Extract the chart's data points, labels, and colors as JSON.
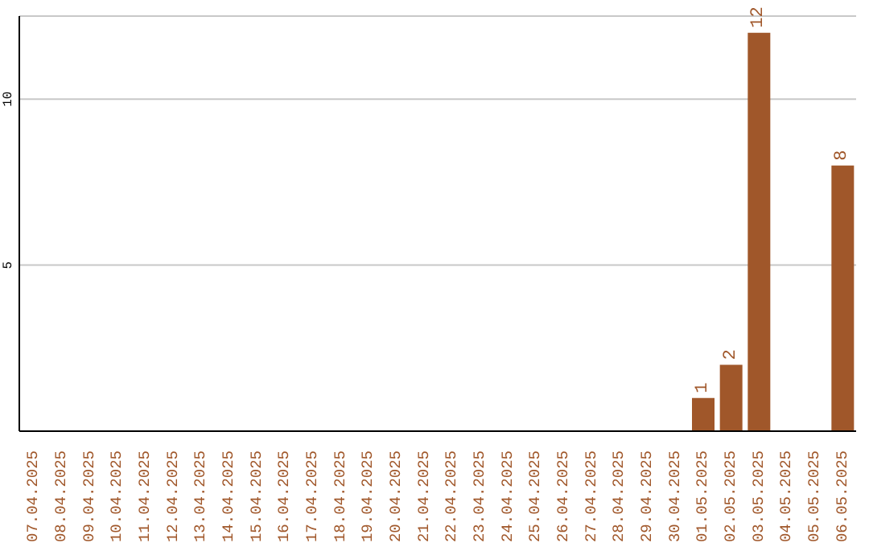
{
  "chart_data": {
    "type": "bar",
    "categories": [
      "07.04.2025",
      "08.04.2025",
      "09.04.2025",
      "10.04.2025",
      "11.04.2025",
      "12.04.2025",
      "13.04.2025",
      "14.04.2025",
      "15.04.2025",
      "16.04.2025",
      "17.04.2025",
      "18.04.2025",
      "19.04.2025",
      "20.04.2025",
      "21.04.2025",
      "22.04.2025",
      "23.04.2025",
      "24.04.2025",
      "25.04.2025",
      "26.04.2025",
      "27.04.2025",
      "28.04.2025",
      "29.04.2025",
      "30.04.2025",
      "01.05.2025",
      "02.05.2025",
      "03.05.2025",
      "04.05.2025",
      "05.05.2025",
      "06.05.2025"
    ],
    "values": [
      0,
      0,
      0,
      0,
      0,
      0,
      0,
      0,
      0,
      0,
      0,
      0,
      0,
      0,
      0,
      0,
      0,
      0,
      0,
      0,
      0,
      0,
      0,
      0,
      1,
      2,
      12,
      0,
      0,
      8
    ],
    "value_labels": [
      null,
      null,
      null,
      null,
      null,
      null,
      null,
      null,
      null,
      null,
      null,
      null,
      null,
      null,
      null,
      null,
      null,
      null,
      null,
      null,
      null,
      null,
      null,
      null,
      "1",
      "2",
      "12",
      null,
      null,
      "8"
    ],
    "color": "#a0572a",
    "ylim": [
      0,
      12.5
    ],
    "yticks": [
      5,
      10
    ],
    "grid": "y",
    "legend": false
  }
}
